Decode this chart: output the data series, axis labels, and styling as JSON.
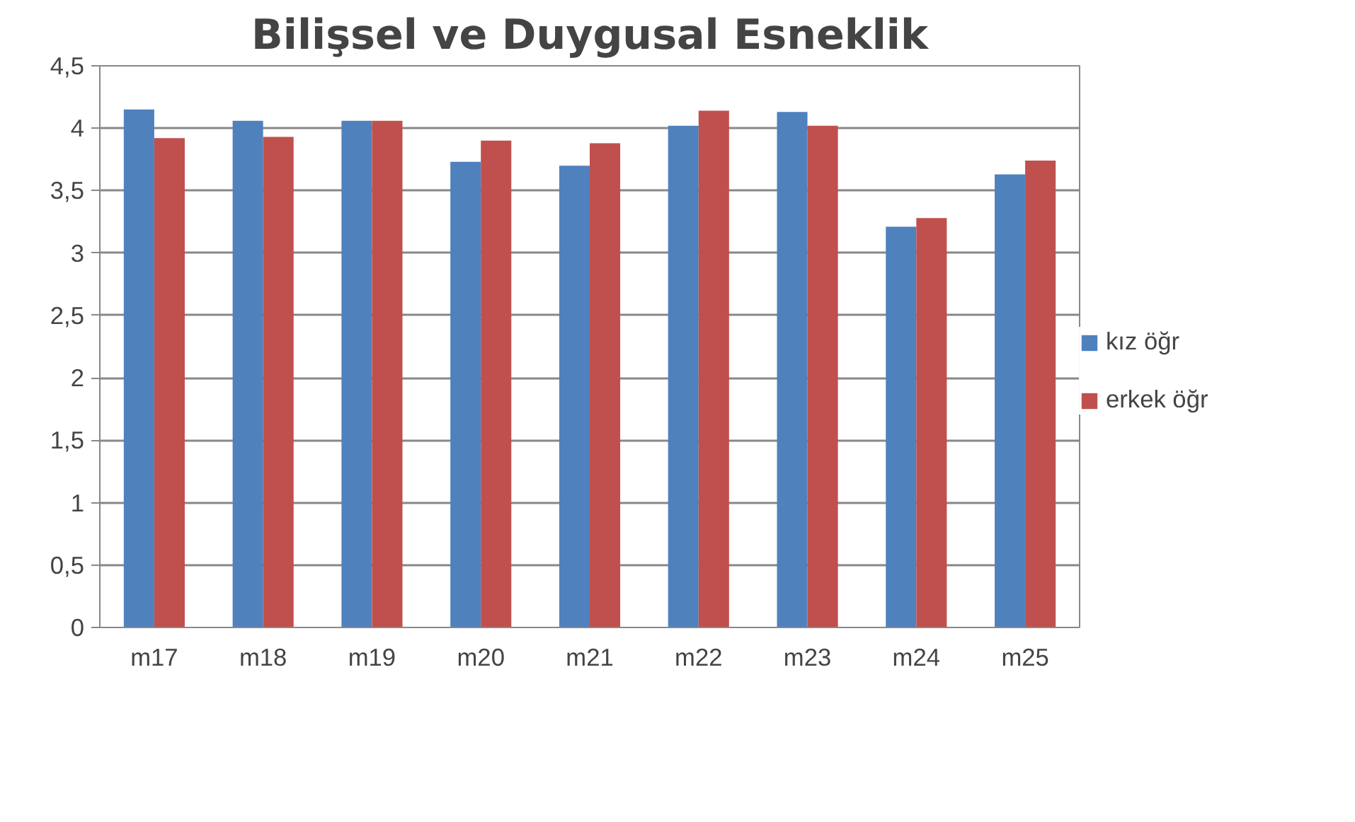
{
  "chart_data": {
    "type": "bar",
    "title": "Bilişsel ve Duygusal Esneklik",
    "categories": [
      "m17",
      "m18",
      "m19",
      "m20",
      "m21",
      "m22",
      "m23",
      "m24",
      "m25"
    ],
    "series": [
      {
        "name": "kız öğr",
        "color": "#4f81bd",
        "values": [
          4.15,
          4.06,
          4.06,
          3.73,
          3.7,
          4.02,
          4.13,
          3.21,
          3.63
        ]
      },
      {
        "name": "erkek öğr",
        "color": "#c0504d",
        "values": [
          3.92,
          3.93,
          4.06,
          3.9,
          3.88,
          4.14,
          4.02,
          3.28,
          3.74
        ]
      }
    ],
    "ylim": [
      0,
      4.5
    ],
    "yticks": [
      0,
      {
        "value": 0.5,
        "label": "0,5"
      },
      1,
      {
        "value": 1.5,
        "label": "1,5"
      },
      2,
      {
        "value": 2.5,
        "label": "2,5"
      },
      3,
      {
        "value": 3.5,
        "label": "3,5"
      },
      4,
      {
        "value": 4.5,
        "label": "4,5"
      }
    ],
    "grid": "y",
    "legend": "right"
  }
}
